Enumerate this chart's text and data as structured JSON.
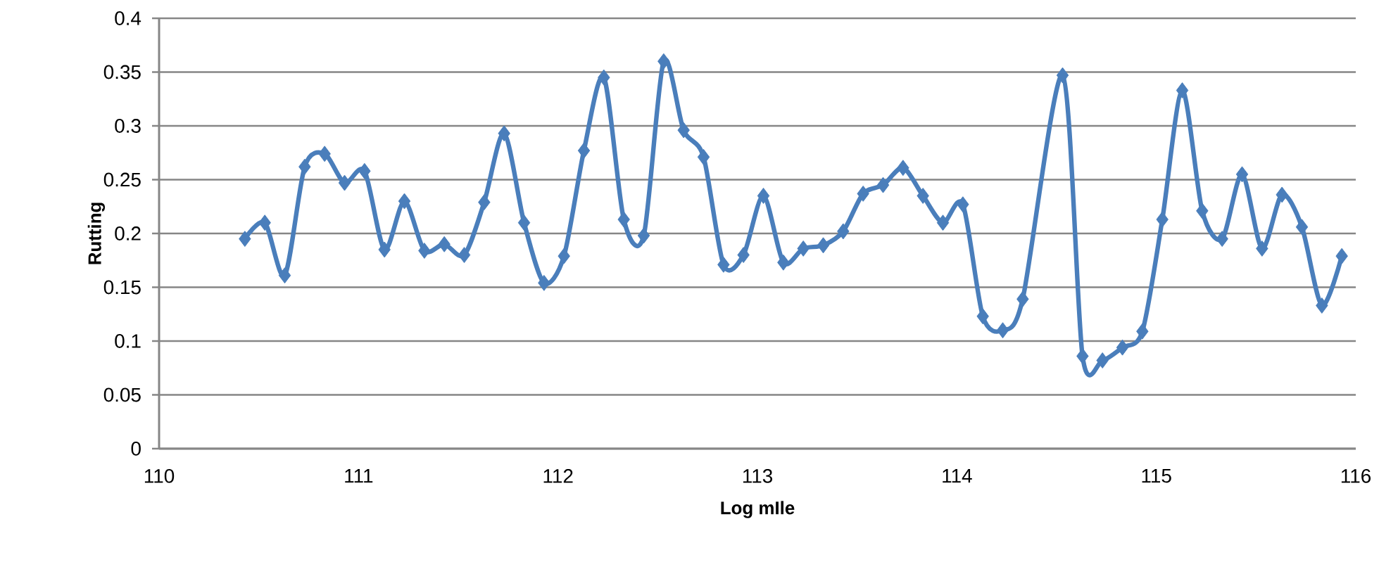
{
  "chart_data": {
    "type": "line",
    "xlabel": "Log mIle",
    "ylabel": "Rutting",
    "x": [
      110.43,
      110.53,
      110.63,
      110.73,
      110.83,
      110.93,
      111.03,
      111.13,
      111.23,
      111.33,
      111.43,
      111.53,
      111.63,
      111.73,
      111.83,
      111.93,
      112.03,
      112.13,
      112.23,
      112.33,
      112.43,
      112.53,
      112.63,
      112.73,
      112.83,
      112.93,
      113.03,
      113.13,
      113.23,
      113.33,
      113.43,
      113.53,
      113.63,
      113.73,
      113.83,
      113.93,
      114.03,
      114.13,
      114.23,
      114.33,
      114.53,
      114.63,
      114.73,
      114.83,
      114.93,
      115.03,
      115.13,
      115.23,
      115.33,
      115.43,
      115.53,
      115.63,
      115.73,
      115.83,
      115.93
    ],
    "series": [
      {
        "color": "#4a7ebb",
        "values": [
          0.195,
          0.21,
          0.161,
          0.262,
          0.274,
          0.247,
          0.258,
          0.185,
          0.23,
          0.184,
          0.19,
          0.18,
          0.229,
          0.293,
          0.21,
          0.154,
          0.179,
          0.277,
          0.345,
          0.213,
          0.198,
          0.36,
          0.296,
          0.271,
          0.171,
          0.18,
          0.235,
          0.173,
          0.186,
          0.189,
          0.202,
          0.237,
          0.245,
          0.261,
          0.235,
          0.21,
          0.227,
          0.123,
          0.11,
          0.139,
          0.347,
          0.086,
          0.082,
          0.094,
          0.109,
          0.213,
          0.333,
          0.221,
          0.195,
          0.255,
          0.186,
          0.236,
          0.206,
          0.133,
          0.179
        ]
      }
    ],
    "xlim": [
      110,
      116
    ],
    "xticks": [
      110,
      111,
      112,
      113,
      114,
      115,
      116
    ],
    "ylim": [
      0,
      0.4
    ],
    "yticks": [
      0,
      0.05,
      0.1,
      0.15,
      0.2,
      0.25,
      0.3,
      0.35,
      0.4
    ],
    "grid": "y",
    "marker": "diamond",
    "line_style": "solid"
  }
}
